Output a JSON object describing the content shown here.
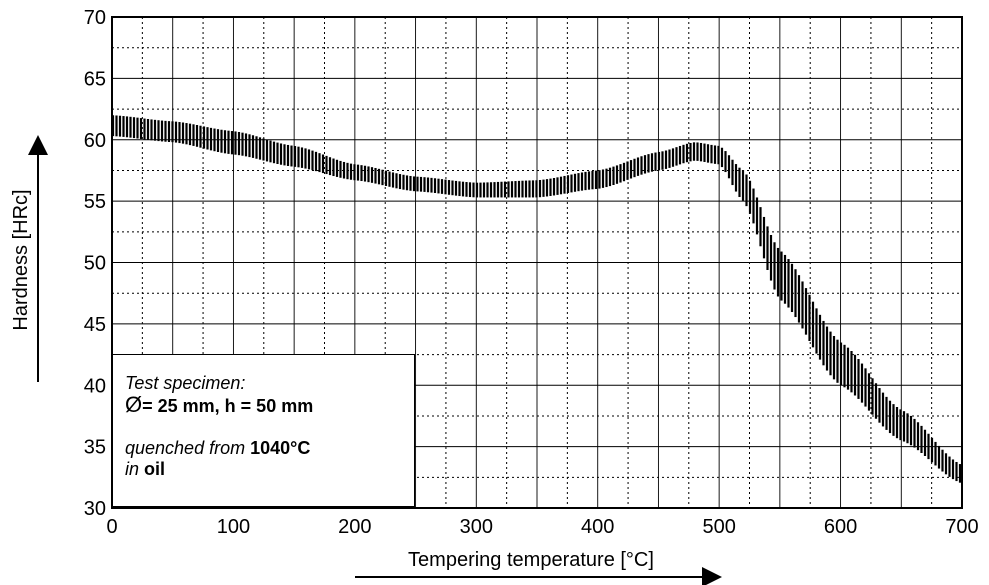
{
  "chart_data": {
    "type": "area",
    "xlabel": "Tempering temperature [°C]",
    "ylabel": "Hardness [HRc]",
    "xlim": [
      0,
      700
    ],
    "ylim": [
      30,
      70
    ],
    "x_ticks": [
      "0",
      "100",
      "200",
      "300",
      "400",
      "500",
      "600",
      "700"
    ],
    "y_ticks": [
      "30",
      "35",
      "40",
      "45",
      "50",
      "55",
      "60",
      "65",
      "70"
    ],
    "grid": "major solid, minor dotted",
    "series": [
      {
        "x": [
          0,
          50,
          100,
          150,
          200,
          250,
          300,
          350,
          400,
          450,
          480,
          500,
          520,
          550,
          600,
          650,
          700
        ],
        "upper": [
          62,
          61.5,
          60.7,
          59.5,
          58,
          57,
          56.5,
          56.7,
          57.5,
          59,
          59.8,
          59.5,
          57.5,
          51,
          43.5,
          38,
          33.5
        ],
        "lower": [
          60.3,
          59.8,
          58.8,
          57.8,
          56.7,
          55.8,
          55.3,
          55.3,
          56,
          57.5,
          58.3,
          58,
          55,
          47,
          40,
          35.5,
          32
        ]
      }
    ]
  },
  "legend": {
    "line1": "Test specimen:",
    "diameter_symbol": "Ø",
    "line2": "= 25 mm, h = 50 mm",
    "line3_prefix": "quenched from ",
    "line3_value": "1040°C",
    "line4_prefix": "in ",
    "line4_value": "oil"
  }
}
